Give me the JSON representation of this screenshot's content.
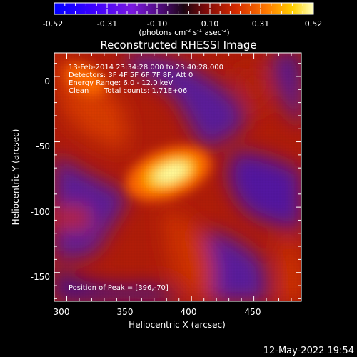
{
  "colorbar": {
    "ticks": [
      "-0.52",
      "-0.31",
      "-0.10",
      "0.10",
      "0.31",
      "0.52"
    ],
    "unit_main": "(photons cm",
    "unit_exp1": "-2",
    "unit_mid1": " s",
    "unit_exp2": "-1",
    "unit_mid2": " asec",
    "unit_exp3": "-2",
    "unit_close": ")"
  },
  "title": "Reconstructed RHESSI Image",
  "info": {
    "line1": "13-Feb-2014 23:34:28.000 to 23:40:28.000",
    "line2": "Detectors: 3F 4F 5F 6F 7F 8F, Att 0",
    "line3": "Energy Range: 6.0 - 12.0 keV",
    "line4_a": "Clean",
    "line4_b": "Total counts: 1.71E+06"
  },
  "peak_text": "Position of Peak = [396,-70]",
  "axes": {
    "xlabel": "Heliocentric X (arcsec)",
    "ylabel": "Heliocentric Y (arcsec)",
    "x_ticks": [
      "300",
      "350",
      "400",
      "450"
    ],
    "y_ticks": [
      "0",
      "-50",
      "-100",
      "-150"
    ],
    "x_range": [
      290,
      488
    ],
    "y_range": [
      -172,
      18
    ]
  },
  "timestamp": "12-May-2022 19:54",
  "colors": {
    "background": "#000000",
    "axes": "#ffffff"
  }
}
